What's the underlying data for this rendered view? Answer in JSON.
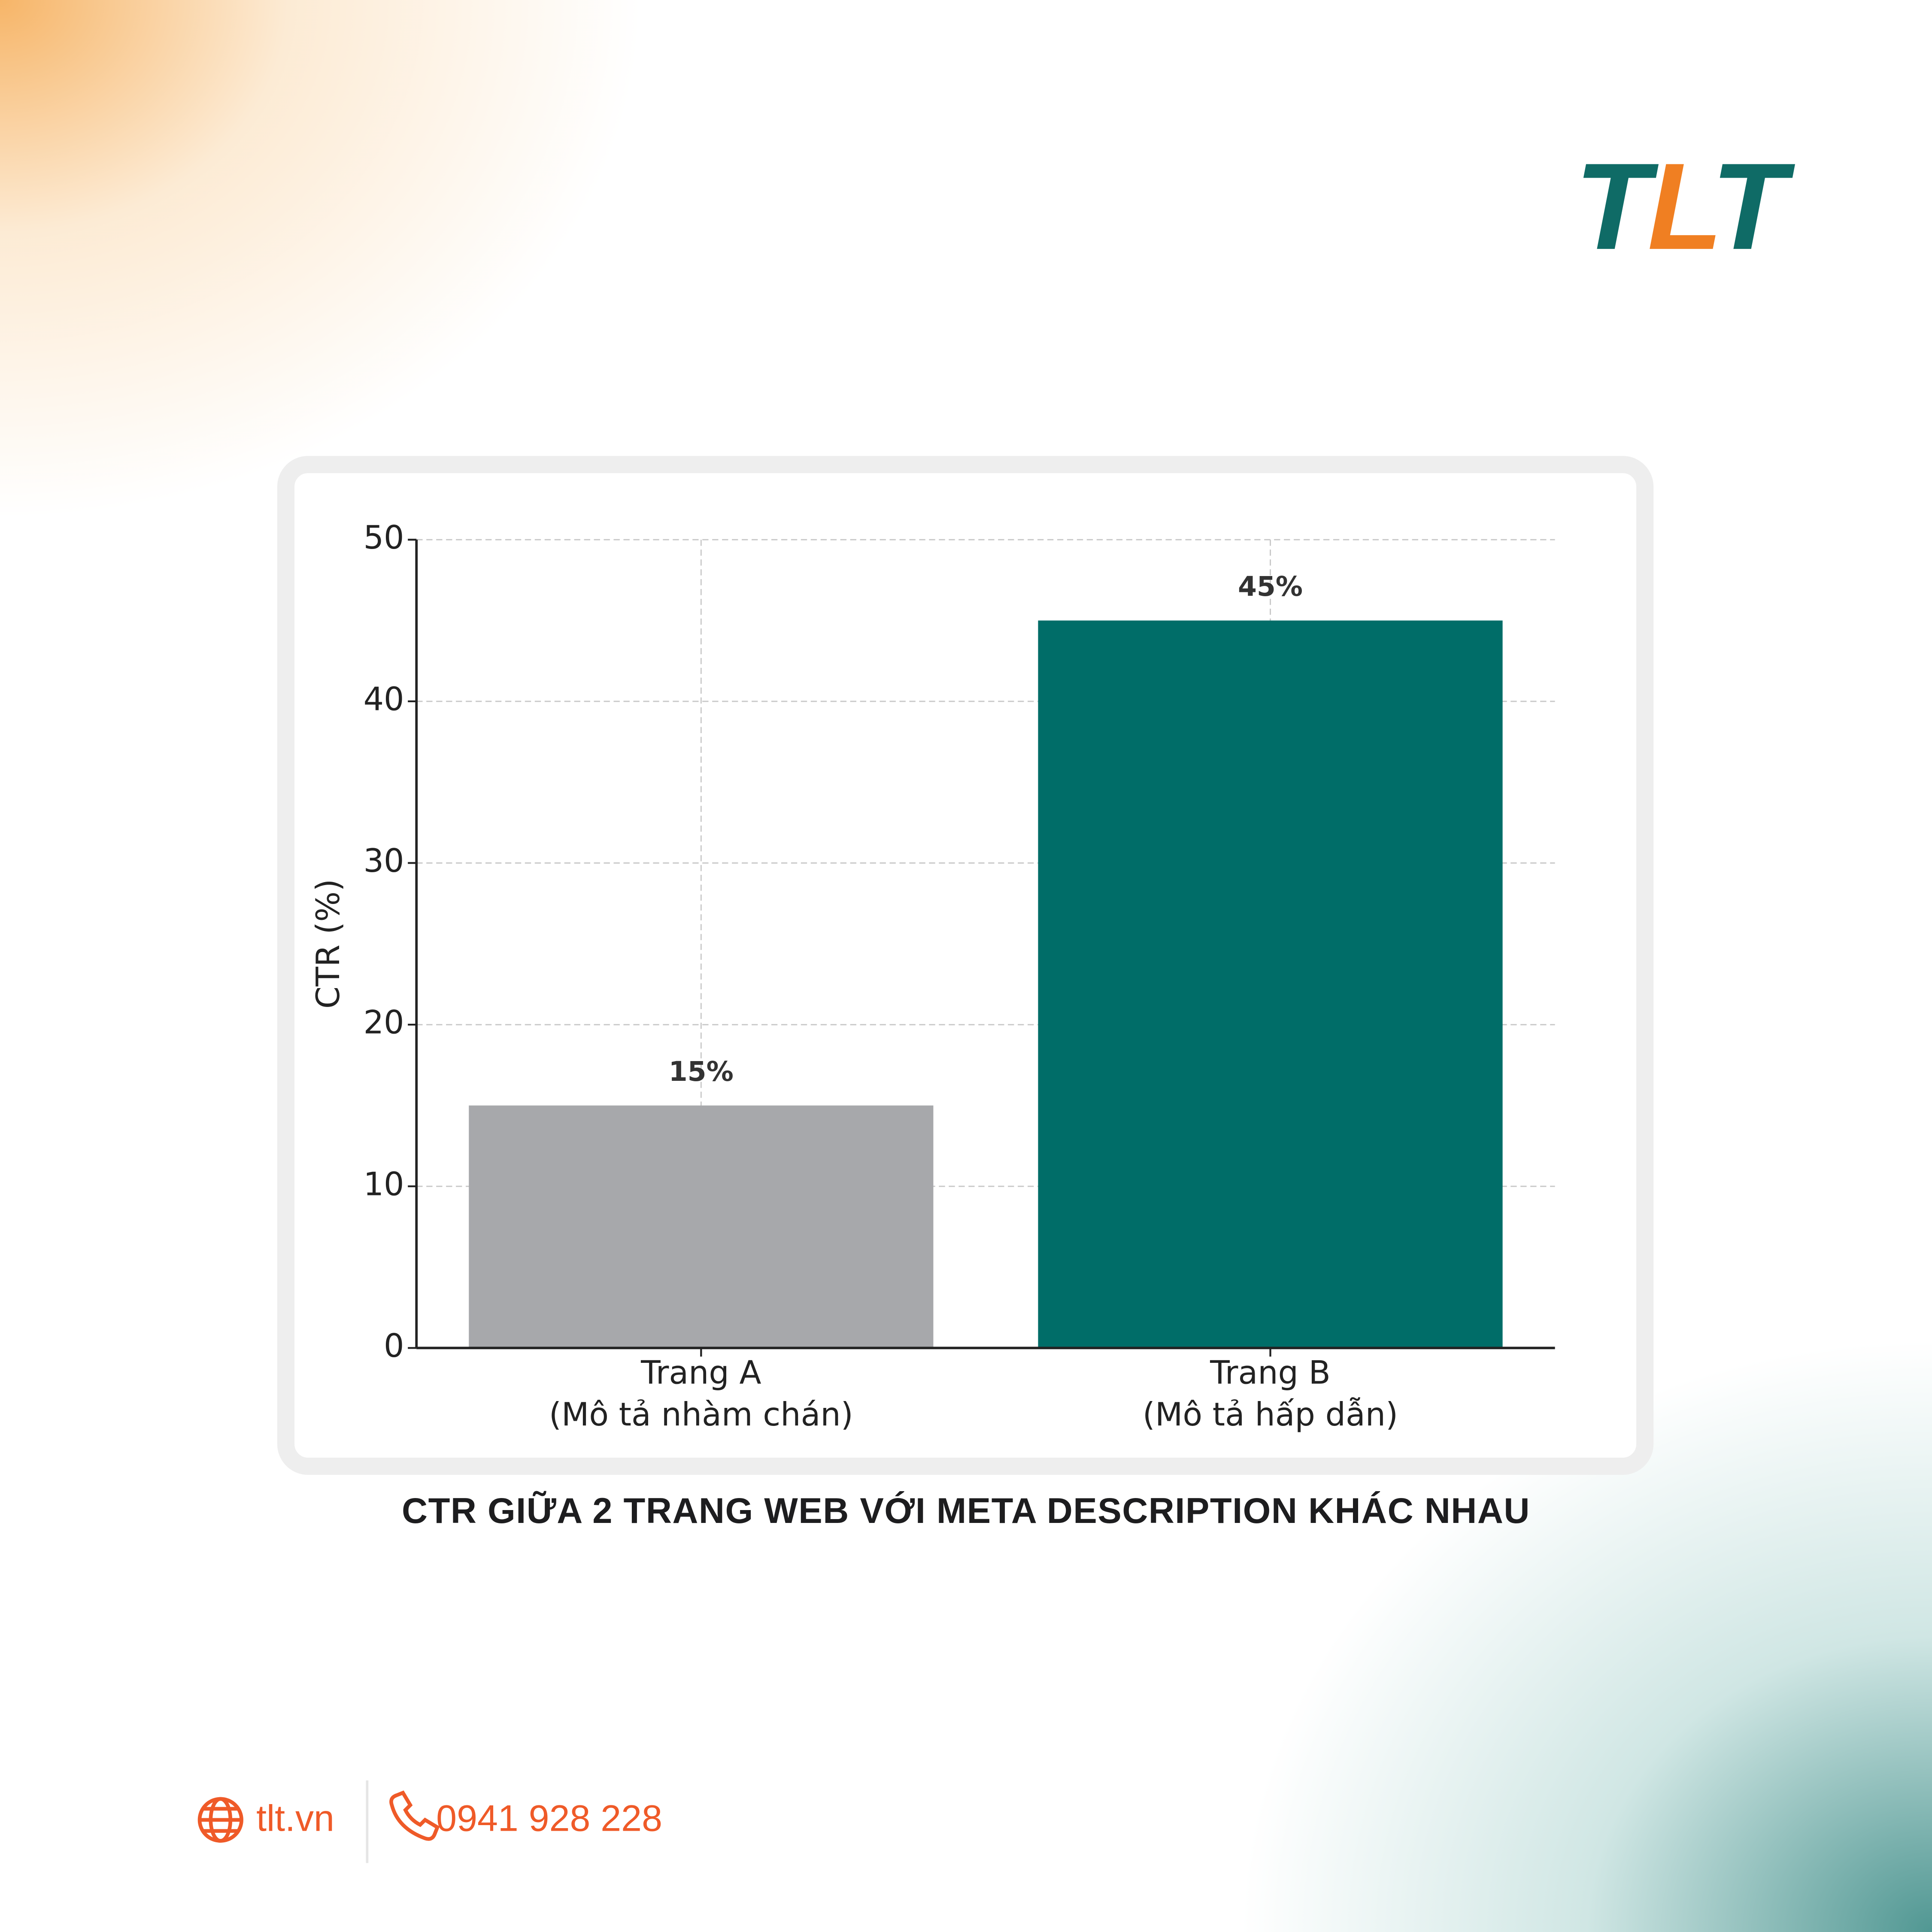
{
  "logo": [
    "T",
    "L",
    "T"
  ],
  "chart_data": {
    "type": "bar",
    "categories": [
      "Trang A\n(Mô tả nhàm chán)",
      "Trang B\n(Mô tả hấp dẫn)"
    ],
    "values": [
      15,
      45
    ],
    "value_labels": [
      "15%",
      "45%"
    ],
    "colors": [
      "#a7a8ab",
      "#006d68"
    ],
    "y_label": "CTR (%)",
    "ylim": [
      0,
      50
    ],
    "yticks": [
      0,
      10,
      20,
      30,
      40,
      50
    ],
    "grid": true
  },
  "caption": "CTR GIỮA 2 TRANG WEB VỚI META DESCRIPTION KHÁC NHAU",
  "footer": {
    "website": "tlt.vn",
    "phone": "0941 928 228"
  }
}
